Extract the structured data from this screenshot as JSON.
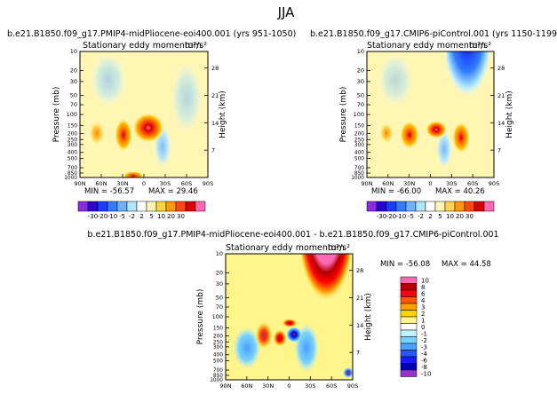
{
  "figure_title": "JJA",
  "chart_data": [
    {
      "type": "heatmap",
      "header": "b.e21.B1850.f09_g17.PMIP4-midPliocene-eoi400.001 (yrs 951-1050)",
      "title": "Stationary eddy momentum",
      "units": "m²/s²",
      "xlabel": "",
      "ylabel": "Pressure (mb)",
      "ylabel_right": "Height (km)",
      "x_ticks": [
        "90N",
        "60N",
        "30N",
        "0",
        "30S",
        "60S",
        "90S"
      ],
      "y_ticks": [
        "10",
        "20",
        "30",
        "50",
        "70",
        "100",
        "150",
        "200",
        "250",
        "300",
        "400",
        "500",
        "700",
        "850",
        "1000"
      ],
      "y_ticks_right": [
        "35",
        "28",
        "21",
        "14",
        "7"
      ],
      "min_label": "MIN = -56.57",
      "max_label": "MAX = 29.46",
      "min": -56.57,
      "max": 29.46,
      "features": [
        {
          "lat": 0,
          "p_mb": 150,
          "value": 20
        },
        {
          "lat": 25,
          "p_mb": 150,
          "value": 10
        },
        {
          "lat": -10,
          "p_mb": 250,
          "value": 5
        },
        {
          "lat": -30,
          "p_mb": 400,
          "value": -5
        },
        {
          "lat": -60,
          "p_mb": 150,
          "value": -2
        }
      ],
      "colorbar_labels": [
        "-30",
        "-20",
        "-10",
        "-5",
        "-2",
        "2",
        "5",
        "10",
        "20",
        "30"
      ]
    },
    {
      "type": "heatmap",
      "header": "b.e21.B1850.f09_g17.CMIP6-piControl.001 (yrs 1150-1199)",
      "title": "Stationary eddy momentum",
      "units": "m²/s²",
      "xlabel": "",
      "ylabel": "Pressure (mb)",
      "ylabel_right": "Height (km)",
      "x_ticks": [
        "90N",
        "60N",
        "30N",
        "0",
        "30S",
        "60S",
        "90S"
      ],
      "y_ticks": [
        "10",
        "20",
        "30",
        "50",
        "70",
        "100",
        "150",
        "200",
        "250",
        "300",
        "400",
        "500",
        "700",
        "850",
        "1000"
      ],
      "y_ticks_right": [
        "35",
        "28",
        "21",
        "14",
        "7"
      ],
      "min_label": "MIN = -66.00",
      "max_label": "MAX = 40.26",
      "min": -66.0,
      "max": 40.26,
      "features": [
        {
          "lat": -55,
          "p_mb": 10,
          "value": -40
        },
        {
          "lat": 5,
          "p_mb": 150,
          "value": 30
        },
        {
          "lat": 20,
          "p_mb": 200,
          "value": 10
        },
        {
          "lat": -25,
          "p_mb": 200,
          "value": 8
        },
        {
          "lat": -25,
          "p_mb": 400,
          "value": -5
        }
      ],
      "colorbar_labels": [
        "-30",
        "-20",
        "-10",
        "-5",
        "-2",
        "2",
        "5",
        "10",
        "20",
        "30"
      ]
    },
    {
      "type": "heatmap",
      "header": "b.e21.B1850.f09_g17.PMIP4-midPliocene-eoi400.001 - b.e21.B1850.f09_g17.CMIP6-piControl.001",
      "title": "Stationary eddy momentum",
      "units": "m²/s²",
      "xlabel": "",
      "ylabel": "Pressure (mb)",
      "ylabel_right": "Height (km)",
      "x_ticks": [
        "90N",
        "60N",
        "30N",
        "0",
        "30S",
        "60S",
        "90S"
      ],
      "y_ticks": [
        "10",
        "20",
        "30",
        "50",
        "70",
        "100",
        "150",
        "200",
        "250",
        "300",
        "400",
        "500",
        "700",
        "850",
        "1000"
      ],
      "y_ticks_right": [
        "35",
        "28",
        "21",
        "14",
        "7"
      ],
      "min_label": "MIN = -56.08",
      "max_label": "MAX = 44.58",
      "min": -56.08,
      "max": 44.58,
      "features": [
        {
          "lat": -55,
          "p_mb": 10,
          "value": 40
        },
        {
          "lat": 10,
          "p_mb": 150,
          "value": -10
        },
        {
          "lat": 0,
          "p_mb": 100,
          "value": 6
        },
        {
          "lat": -10,
          "p_mb": 200,
          "value": -8
        },
        {
          "lat": 20,
          "p_mb": 200,
          "value": 5
        },
        {
          "lat": 40,
          "p_mb": 250,
          "value": -3
        },
        {
          "lat": -30,
          "p_mb": 300,
          "value": -4
        }
      ],
      "colorbar_labels": [
        "10",
        "8",
        "6",
        "4",
        "3",
        "2",
        "1",
        "0",
        "-1",
        "-2",
        "-3",
        "-4",
        "-6",
        "-8",
        "-10"
      ]
    }
  ],
  "colors": {
    "seq_top": [
      "#8a2be2",
      "#2a00d0",
      "#1a3cff",
      "#2f7cff",
      "#6fb1ff",
      "#aee6ff",
      "#ffffff",
      "#fff6b4",
      "#ffd24a",
      "#ff9a00",
      "#ff4a00",
      "#d80000",
      "#ff69b4"
    ],
    "seq_diff": [
      "#ff69b4",
      "#b20000",
      "#ff0000",
      "#ff5a00",
      "#ffa000",
      "#ffd400",
      "#fff58a",
      "#ffffff",
      "#bff2ff",
      "#78d2ff",
      "#4aa0ff",
      "#1e5aff",
      "#1a1aff",
      "#0000b0",
      "#9932cc"
    ]
  }
}
